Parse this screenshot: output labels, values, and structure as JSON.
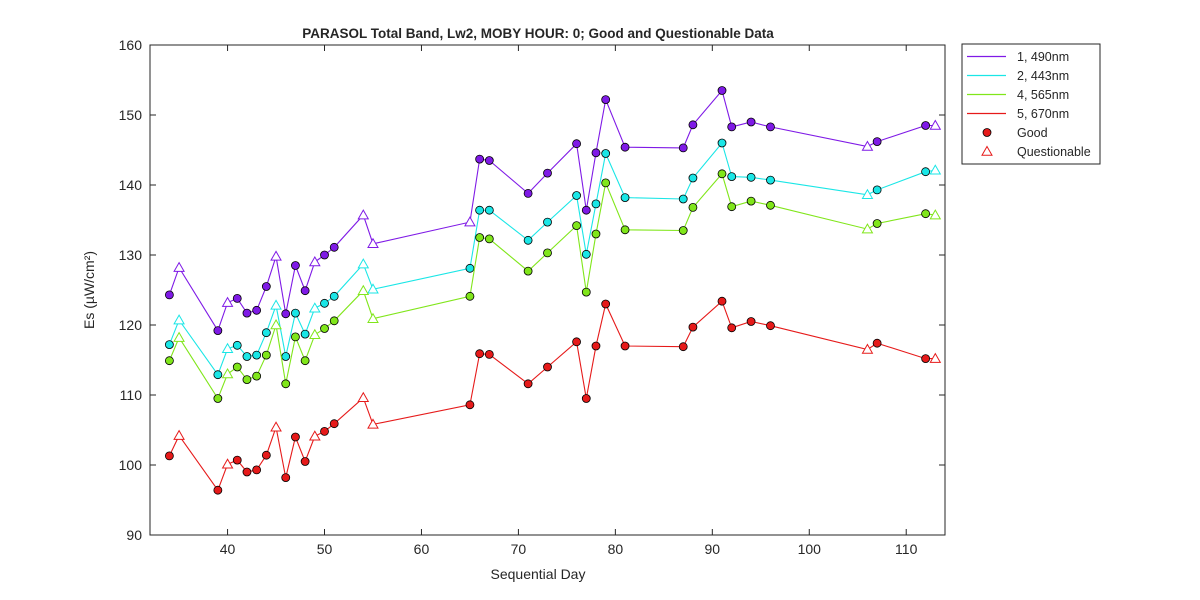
{
  "chart_data": {
    "type": "line",
    "title": "PARASOL Total Band,  Lw2, MOBY HOUR: 0;  Good and Questionable Data",
    "xlabel": "Sequential Day",
    "ylabel": "Es (µW/cm²)",
    "xlim": [
      32,
      114
    ],
    "ylim": [
      90,
      160
    ],
    "xticks": [
      40,
      50,
      60,
      70,
      80,
      90,
      100,
      110
    ],
    "yticks": [
      90,
      100,
      110,
      120,
      130,
      140,
      150,
      160
    ],
    "grid": false,
    "legend_position": "outside-top-right",
    "marker_legend": [
      {
        "label": "Good",
        "marker": "circle"
      },
      {
        "label": "Questionable",
        "marker": "triangle"
      }
    ],
    "series": [
      {
        "name": "1, 490nm",
        "color": "#7f1ae6",
        "x": [
          34,
          35,
          39,
          40,
          41,
          42,
          43,
          44,
          45,
          46,
          47,
          48,
          49,
          50,
          51,
          54,
          55,
          65,
          66,
          67,
          71,
          73,
          76,
          77,
          78,
          79,
          81,
          87,
          88,
          91,
          92,
          94,
          96,
          106,
          107,
          112,
          113
        ],
        "y": [
          124.3,
          128.2,
          119.2,
          123.2,
          123.8,
          121.7,
          122.1,
          125.5,
          129.8,
          121.6,
          128.5,
          124.9,
          129.0,
          130.0,
          131.1,
          135.7,
          131.6,
          134.7,
          143.7,
          143.5,
          138.8,
          141.7,
          145.9,
          136.4,
          144.6,
          152.2,
          145.4,
          145.3,
          148.6,
          153.5,
          148.3,
          149.0,
          148.3,
          145.5,
          146.2,
          148.5,
          148.5
        ],
        "quality": [
          "G",
          "Q",
          "G",
          "Q",
          "G",
          "G",
          "G",
          "G",
          "Q",
          "G",
          "G",
          "G",
          "Q",
          "G",
          "G",
          "Q",
          "Q",
          "Q",
          "G",
          "G",
          "G",
          "G",
          "G",
          "G",
          "G",
          "G",
          "G",
          "G",
          "G",
          "G",
          "G",
          "G",
          "G",
          "Q",
          "G",
          "G",
          "Q"
        ]
      },
      {
        "name": "2, 443nm",
        "color": "#1ae6e6",
        "x": [
          34,
          35,
          39,
          40,
          41,
          42,
          43,
          44,
          45,
          46,
          47,
          48,
          49,
          50,
          51,
          54,
          55,
          65,
          66,
          67,
          71,
          73,
          76,
          77,
          78,
          79,
          81,
          87,
          88,
          91,
          92,
          94,
          96,
          106,
          107,
          112,
          113
        ],
        "y": [
          117.2,
          120.7,
          112.9,
          116.6,
          117.1,
          115.5,
          115.7,
          118.9,
          122.8,
          115.5,
          121.7,
          118.7,
          122.4,
          123.1,
          124.1,
          128.7,
          125.1,
          128.1,
          136.4,
          136.4,
          132.1,
          134.7,
          138.5,
          130.1,
          137.3,
          144.5,
          138.2,
          138.0,
          141.0,
          146.0,
          141.2,
          141.1,
          140.7,
          138.6,
          139.3,
          141.9,
          142.1
        ],
        "quality": [
          "G",
          "Q",
          "G",
          "Q",
          "G",
          "G",
          "G",
          "G",
          "Q",
          "G",
          "G",
          "G",
          "Q",
          "G",
          "G",
          "Q",
          "Q",
          "G",
          "G",
          "G",
          "G",
          "G",
          "G",
          "G",
          "G",
          "G",
          "G",
          "G",
          "G",
          "G",
          "G",
          "G",
          "G",
          "Q",
          "G",
          "G",
          "Q"
        ]
      },
      {
        "name": "4, 565nm",
        "color": "#80e61a",
        "x": [
          34,
          35,
          39,
          40,
          41,
          42,
          43,
          44,
          45,
          46,
          47,
          48,
          49,
          50,
          51,
          54,
          55,
          65,
          66,
          67,
          71,
          73,
          76,
          77,
          78,
          79,
          81,
          87,
          88,
          91,
          92,
          94,
          96,
          106,
          107,
          112,
          113
        ],
        "y": [
          114.9,
          118.2,
          109.5,
          113.0,
          114.0,
          112.2,
          112.7,
          115.7,
          120.0,
          111.6,
          118.3,
          114.9,
          118.6,
          119.5,
          120.6,
          124.9,
          120.9,
          124.1,
          132.5,
          132.3,
          127.7,
          130.3,
          134.2,
          124.7,
          133.0,
          140.3,
          133.6,
          133.5,
          136.8,
          141.6,
          136.9,
          137.7,
          137.1,
          133.7,
          134.5,
          135.9,
          135.7
        ],
        "quality": [
          "G",
          "Q",
          "G",
          "Q",
          "G",
          "G",
          "G",
          "G",
          "Q",
          "G",
          "G",
          "G",
          "Q",
          "G",
          "G",
          "Q",
          "Q",
          "G",
          "G",
          "G",
          "G",
          "G",
          "G",
          "G",
          "G",
          "G",
          "G",
          "G",
          "G",
          "G",
          "G",
          "G",
          "G",
          "Q",
          "G",
          "G",
          "Q"
        ]
      },
      {
        "name": "5, 670nm",
        "color": "#e61a1a",
        "x": [
          34,
          35,
          39,
          40,
          41,
          42,
          43,
          44,
          45,
          46,
          47,
          48,
          49,
          50,
          51,
          54,
          55,
          65,
          66,
          67,
          71,
          73,
          76,
          77,
          78,
          79,
          81,
          87,
          88,
          91,
          92,
          94,
          96,
          106,
          107,
          112,
          113
        ],
        "y": [
          101.3,
          104.2,
          96.4,
          100.1,
          100.7,
          99.0,
          99.3,
          101.4,
          105.4,
          98.2,
          104.0,
          100.5,
          104.1,
          104.8,
          105.9,
          109.6,
          105.8,
          108.6,
          115.9,
          115.8,
          111.6,
          114.0,
          117.6,
          109.5,
          117.0,
          123.0,
          117.0,
          116.9,
          119.7,
          123.4,
          119.6,
          120.5,
          119.9,
          116.5,
          117.4,
          115.2,
          115.2
        ],
        "quality": [
          "G",
          "Q",
          "G",
          "Q",
          "G",
          "G",
          "G",
          "G",
          "Q",
          "G",
          "G",
          "G",
          "Q",
          "G",
          "G",
          "Q",
          "Q",
          "G",
          "G",
          "G",
          "G",
          "G",
          "G",
          "G",
          "G",
          "G",
          "G",
          "G",
          "G",
          "G",
          "G",
          "G",
          "G",
          "Q",
          "G",
          "G",
          "Q"
        ]
      }
    ]
  }
}
